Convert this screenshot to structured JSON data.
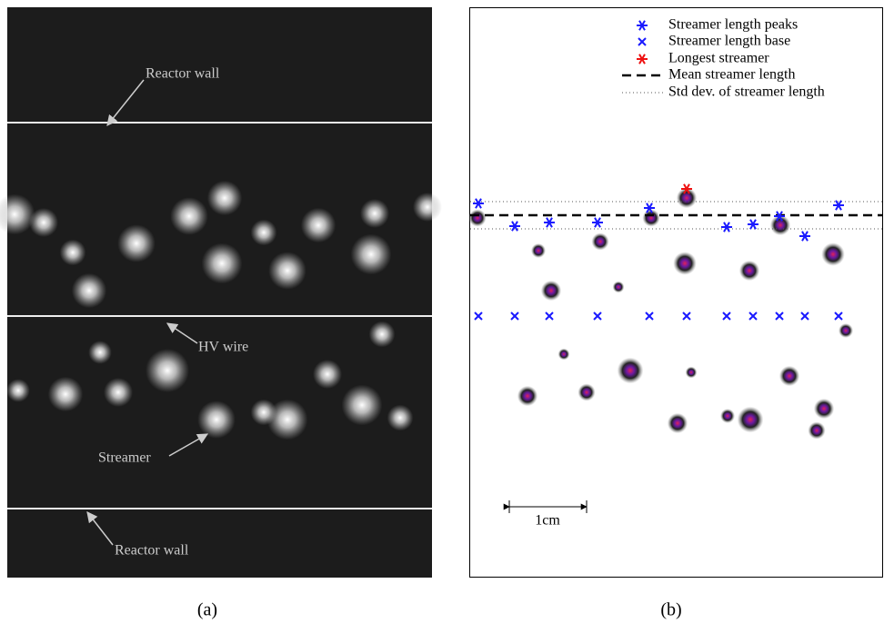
{
  "panel_a": {
    "annotations": [
      "Reactor wall",
      "HV wire",
      "Streamer",
      "Reactor wall"
    ],
    "caption": "(a)"
  },
  "panel_b": {
    "legend": [
      "Streamer length peaks",
      "Streamer length base",
      "Longest streamer",
      "Mean streamer length",
      "Std dev. of streamer length"
    ],
    "scale_bar": "1cm",
    "caption": "(b)"
  }
}
